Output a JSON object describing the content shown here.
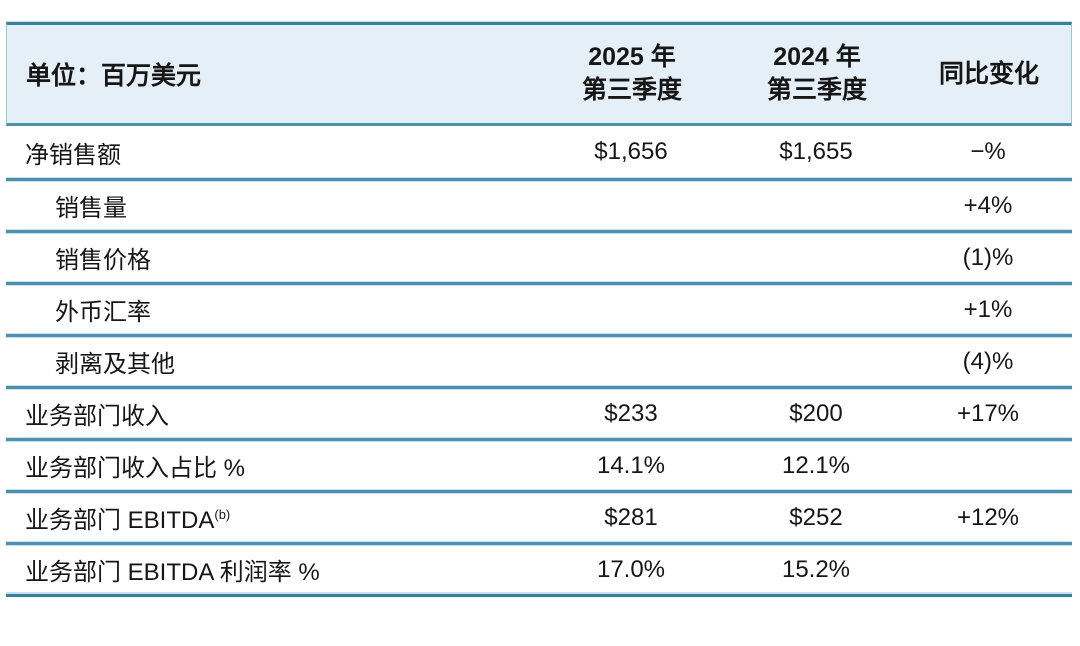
{
  "table": {
    "unit_label": "单位：百万美元",
    "col_2025": {
      "line1": "2025 年",
      "line2": "第三季度"
    },
    "col_2024": {
      "line1": "2024 年",
      "line2": "第三季度"
    },
    "col_yoy": "同比变化",
    "rows": [
      {
        "label": "净销售额",
        "indent": false,
        "sup": "",
        "v2025": "$1,656",
        "v2024": "$1,655",
        "yoy": "−%"
      },
      {
        "label": "销售量",
        "indent": true,
        "sup": "",
        "v2025": "",
        "v2024": "",
        "yoy": "+4%"
      },
      {
        "label": "销售价格",
        "indent": true,
        "sup": "",
        "v2025": "",
        "v2024": "",
        "yoy": "(1)%"
      },
      {
        "label": "外币汇率",
        "indent": true,
        "sup": "",
        "v2025": "",
        "v2024": "",
        "yoy": "+1%"
      },
      {
        "label": "剥离及其他",
        "indent": true,
        "sup": "",
        "v2025": "",
        "v2024": "",
        "yoy": "(4)%"
      },
      {
        "label": "业务部门收入",
        "indent": false,
        "sup": "",
        "v2025": "$233",
        "v2024": "$200",
        "yoy": "+17%"
      },
      {
        "label": "业务部门收入占比 %",
        "indent": false,
        "sup": "",
        "v2025": "14.1%",
        "v2024": "12.1%",
        "yoy": ""
      },
      {
        "label": "业务部门 EBITDA",
        "indent": false,
        "sup": "(b)",
        "v2025": "$281",
        "v2024": "$252",
        "yoy": "+12%"
      },
      {
        "label": "业务部门 EBITDA 利润率 %",
        "indent": false,
        "sup": "",
        "v2025": "17.0%",
        "v2024": "15.2%",
        "yoy": ""
      }
    ],
    "colors": {
      "header_bg": "#e5eff7",
      "line_dark": "#4f8fae",
      "line_light": "#c8e0ed",
      "bottom_line": "#35829a",
      "text": "#161616"
    }
  }
}
